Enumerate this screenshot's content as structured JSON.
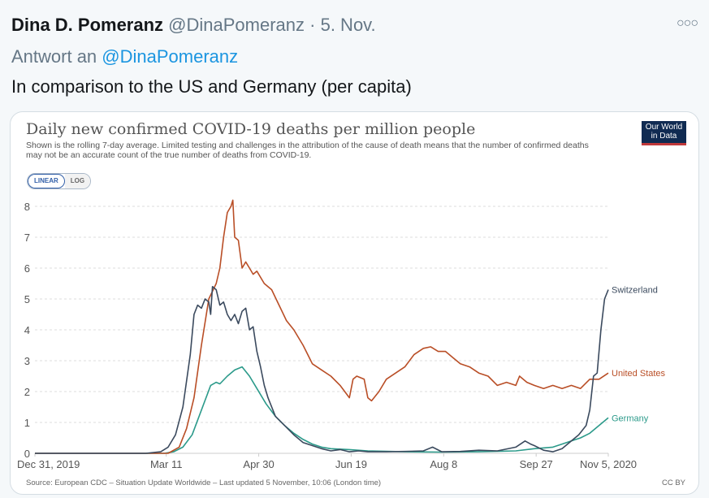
{
  "tweet": {
    "author_name": "Dina D. Pomeranz",
    "author_handle": "@DinaPomeranz",
    "separator": " · ",
    "date": "5. Nov.",
    "more_icon": "more-icon",
    "reply_prefix": "Antwort an ",
    "reply_handle": "@DinaPomeranz",
    "text": "In comparison to the US and Germany (per capita)"
  },
  "card": {
    "logo_line1": "Our World",
    "logo_line2": "in Data",
    "toggle_linear": "LINEAR",
    "toggle_log": "LOG",
    "source": "Source: European CDC – Situation Update Worldwide – Last updated 5 November, 10:06 (London time)",
    "license": "CC BY"
  },
  "colors": {
    "switzerland": "#3b4a5e",
    "united_states": "#b94e26",
    "germany": "#2b9a8a"
  },
  "chart_data": {
    "type": "line",
    "title": "Daily new confirmed COVID-19 deaths per million people",
    "subtitle": "Shown is the rolling 7-day average. Limited testing and challenges in the attribution of the cause of death means that the number of confirmed deaths may not be an accurate count of the true number of deaths from COVID-19.",
    "xlabel": "",
    "ylabel": "",
    "x_unit": "days since Dec 31, 2019",
    "xlim": [
      0,
      310
    ],
    "ylim": [
      0,
      8
    ],
    "yticks": [
      0,
      1,
      2,
      3,
      4,
      5,
      6,
      7,
      8
    ],
    "xticks": [
      {
        "day": 0,
        "label": "Dec 31, 2019"
      },
      {
        "day": 71,
        "label": "Mar 11"
      },
      {
        "day": 121,
        "label": "Apr 30"
      },
      {
        "day": 171,
        "label": "Jun 19"
      },
      {
        "day": 221,
        "label": "Aug 8"
      },
      {
        "day": 271,
        "label": "Sep 27"
      },
      {
        "day": 310,
        "label": "Nov 5, 2020"
      }
    ],
    "grid": true,
    "legend": "line-end labels (right)",
    "series": [
      {
        "name": "Switzerland",
        "key": "switzerland",
        "x": [
          0,
          60,
          68,
          72,
          76,
          80,
          84,
          86,
          88,
          90,
          92,
          94,
          95,
          96,
          98,
          100,
          102,
          104,
          106,
          108,
          110,
          112,
          114,
          116,
          118,
          120,
          122,
          124,
          126,
          130,
          135,
          140,
          145,
          150,
          155,
          160,
          165,
          170,
          175,
          180,
          190,
          200,
          210,
          215,
          220,
          230,
          240,
          250,
          260,
          265,
          268,
          270,
          275,
          280,
          285,
          290,
          294,
          298,
          300,
          302,
          304,
          306,
          308,
          310
        ],
        "y": [
          0,
          0,
          0.05,
          0.2,
          0.6,
          1.5,
          3.2,
          4.5,
          4.8,
          4.7,
          5.0,
          4.9,
          4.5,
          5.4,
          5.3,
          4.8,
          4.9,
          4.5,
          4.3,
          4.5,
          4.2,
          4.6,
          4.7,
          4.0,
          4.1,
          3.3,
          2.8,
          2.2,
          1.8,
          1.2,
          0.9,
          0.6,
          0.35,
          0.25,
          0.15,
          0.08,
          0.12,
          0.05,
          0.08,
          0.05,
          0.05,
          0.06,
          0.08,
          0.2,
          0.05,
          0.06,
          0.1,
          0.08,
          0.2,
          0.4,
          0.3,
          0.25,
          0.1,
          0.05,
          0.15,
          0.4,
          0.6,
          0.9,
          1.4,
          2.5,
          2.6,
          4.0,
          5.0,
          5.3
        ]
      },
      {
        "name": "United States",
        "key": "united_states",
        "x": [
          0,
          72,
          78,
          82,
          86,
          90,
          94,
          98,
          100,
          102,
          104,
          106,
          107,
          108,
          110,
          112,
          114,
          116,
          118,
          120,
          124,
          128,
          132,
          136,
          140,
          145,
          150,
          155,
          160,
          165,
          170,
          172,
          174,
          178,
          180,
          182,
          186,
          190,
          195,
          200,
          205,
          210,
          214,
          218,
          222,
          226,
          230,
          235,
          240,
          245,
          250,
          255,
          260,
          262,
          266,
          270,
          275,
          280,
          285,
          290,
          295,
          300,
          305,
          310
        ],
        "y": [
          0,
          0,
          0.2,
          0.8,
          1.8,
          3.5,
          5.0,
          5.5,
          6.0,
          7.0,
          7.8,
          8.0,
          8.2,
          7.0,
          6.9,
          6.0,
          6.2,
          6.0,
          5.8,
          5.9,
          5.5,
          5.3,
          4.8,
          4.3,
          4.0,
          3.5,
          2.9,
          2.7,
          2.5,
          2.2,
          1.8,
          2.4,
          2.5,
          2.4,
          1.8,
          1.7,
          2.0,
          2.4,
          2.6,
          2.8,
          3.2,
          3.4,
          3.45,
          3.3,
          3.3,
          3.1,
          2.9,
          2.8,
          2.6,
          2.5,
          2.2,
          2.3,
          2.2,
          2.5,
          2.3,
          2.2,
          2.1,
          2.2,
          2.1,
          2.2,
          2.1,
          2.4,
          2.4,
          2.6
        ]
      },
      {
        "name": "Germany",
        "key": "germany",
        "x": [
          0,
          70,
          75,
          80,
          85,
          90,
          95,
          98,
          100,
          104,
          108,
          112,
          116,
          120,
          125,
          130,
          135,
          140,
          145,
          150,
          155,
          160,
          170,
          180,
          200,
          220,
          240,
          260,
          270,
          280,
          285,
          290,
          295,
          300,
          305,
          310
        ],
        "y": [
          0,
          0,
          0.05,
          0.2,
          0.6,
          1.4,
          2.2,
          2.3,
          2.25,
          2.5,
          2.7,
          2.8,
          2.5,
          2.1,
          1.6,
          1.2,
          0.9,
          0.65,
          0.45,
          0.3,
          0.2,
          0.15,
          0.12,
          0.08,
          0.05,
          0.04,
          0.05,
          0.08,
          0.15,
          0.2,
          0.3,
          0.4,
          0.5,
          0.65,
          0.9,
          1.15
        ]
      }
    ]
  }
}
